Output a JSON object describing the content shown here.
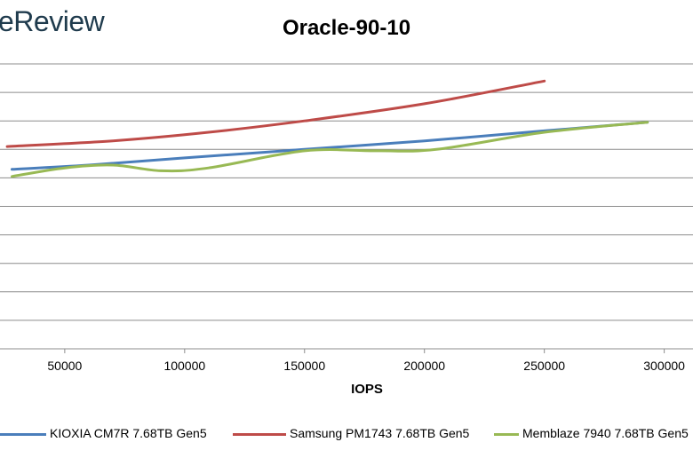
{
  "header": {
    "logo_text": "eReview"
  },
  "chart_data": {
    "type": "line",
    "title": "Oracle-90-10",
    "xlabel": "IOPS",
    "ylabel": "",
    "x_ticks": [
      50000,
      100000,
      150000,
      200000,
      250000,
      300000
    ],
    "x_tick_labels": [
      "50000",
      "100000",
      "150000",
      "200000",
      "250000",
      "300000"
    ],
    "xlim": [
      23000,
      312000
    ],
    "ylim": [
      0,
      10
    ],
    "grid": true,
    "legend_position": "bottom",
    "series": [
      {
        "name": "KIOXIA CM7R 7.68TB Gen5",
        "color": "#4a7ebb",
        "x": [
          28000,
          60000,
          100000,
          150000,
          200000,
          250000,
          293000
        ],
        "y": [
          6.3,
          6.45,
          6.7,
          7.0,
          7.3,
          7.65,
          7.95
        ]
      },
      {
        "name": "Samsung PM1743 7.68TB Gen5",
        "color": "#be4b48",
        "x": [
          26000,
          70000,
          110000,
          150000,
          200000,
          250000
        ],
        "y": [
          7.1,
          7.3,
          7.6,
          8.0,
          8.6,
          9.4
        ]
      },
      {
        "name": "Memblaze 7940 7.68TB Gen5",
        "color": "#98b954",
        "x": [
          28000,
          50000,
          70000,
          90000,
          110000,
          150000,
          180000,
          205000,
          250000,
          293000
        ],
        "y": [
          6.05,
          6.35,
          6.45,
          6.25,
          6.35,
          6.95,
          6.95,
          7.0,
          7.6,
          7.95
        ]
      }
    ]
  }
}
